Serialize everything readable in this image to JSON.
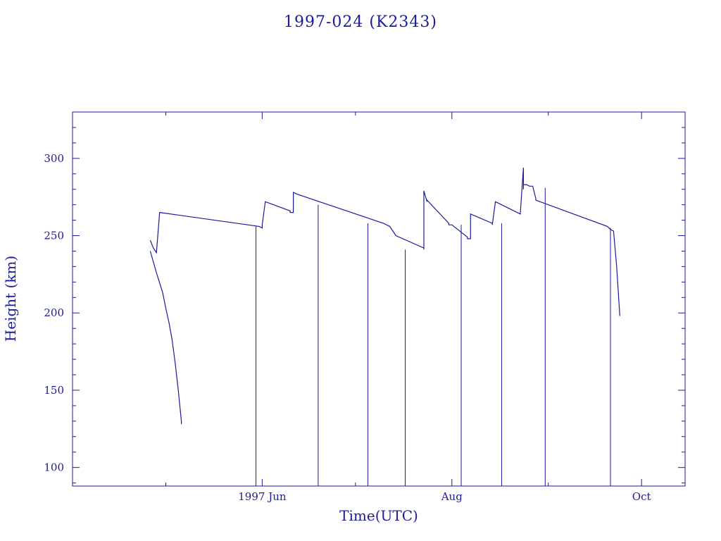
{
  "colors": {
    "line": "#1a1a9c",
    "background": "#ffffff"
  },
  "chart_data": {
    "type": "line",
    "title": "1997-024 (K2343)",
    "xlabel": "Time(UTC)",
    "ylabel": "Height (km)",
    "ylim": [
      88,
      330
    ],
    "xlim": [
      "1997-04-01",
      "1997-10-15"
    ],
    "x_ticks": [
      {
        "label": "1997 Jun",
        "date": "1997-06-01"
      },
      {
        "label": "Aug",
        "date": "1997-08-01"
      },
      {
        "label": "Oct",
        "date": "1997-10-01"
      }
    ],
    "y_ticks": [
      100,
      150,
      200,
      250,
      300
    ],
    "grid": false,
    "series": [
      {
        "x": [
          "1997-04-26",
          "1997-04-28",
          "1997-04-30",
          "1997-05-01",
          "1997-05-02",
          "1997-05-03",
          "1997-05-04",
          "1997-05-05",
          "1997-05-06",
          "1997-05-06"
        ],
        "y": [
          240,
          226,
          213,
          203,
          194,
          183,
          168,
          150,
          130,
          128
        ]
      },
      {
        "x": [
          "1997-04-26",
          "1997-04-27",
          "1997-04-28",
          "1997-04-29",
          "1997-05-31",
          "1997-05-31",
          "1997-06-01",
          "1997-06-01",
          "1997-06-02",
          "1997-06-10",
          "1997-06-10",
          "1997-06-11",
          "1997-06-11",
          "1997-06-12",
          "1997-07-10",
          "1997-07-12",
          "1997-07-14",
          "1997-07-23",
          "1997-07-23",
          "1997-07-23",
          "1997-07-23",
          "1997-07-24",
          "1997-07-24",
          "1997-07-31",
          "1997-07-31",
          "1997-08-01",
          "1997-08-01",
          "1997-08-06",
          "1997-08-06",
          "1997-08-07",
          "1997-08-07",
          "1997-08-14",
          "1997-08-14",
          "1997-08-15",
          "1997-08-15",
          "1997-08-23",
          "1997-08-23",
          "1997-08-24",
          "1997-08-24",
          "1997-08-24",
          "1997-08-25",
          "1997-08-25",
          "1997-08-26",
          "1997-08-27",
          "1997-08-28",
          "1997-08-28",
          "1997-09-20",
          "1997-09-21",
          "1997-09-22",
          "1997-09-23",
          "1997-09-24"
        ],
        "y": [
          247,
          242,
          239,
          265,
          256,
          256,
          255,
          257,
          272,
          266,
          265,
          265,
          278,
          277,
          258,
          256,
          250,
          242,
          241,
          241,
          279,
          272,
          273,
          258,
          257,
          257,
          257,
          249,
          248,
          248,
          264,
          258,
          257,
          272,
          272,
          264,
          264,
          294,
          280,
          283,
          283,
          283,
          282,
          282,
          274,
          273,
          256,
          254,
          253,
          230,
          198
        ]
      },
      {
        "type": "spikes",
        "x": [
          "1997-05-30",
          "1997-06-19",
          "1997-07-05",
          "1997-07-17",
          "1997-08-04",
          "1997-08-17",
          "1997-08-31",
          "1997-09-21"
        ],
        "y": [
          256,
          270,
          258,
          241,
          257,
          258,
          281,
          255
        ]
      }
    ]
  }
}
